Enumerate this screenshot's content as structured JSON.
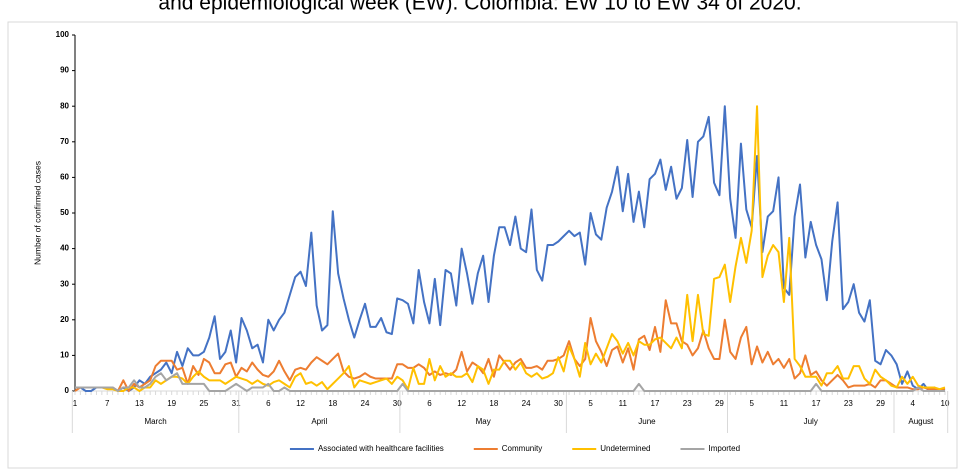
{
  "chart_data": {
    "type": "line",
    "title": "and epidemiological week (EW). Colombia: EW 10 to EW 34 of 2020.",
    "y_label": "Number of confirmed cases",
    "ylim": [
      0,
      100
    ],
    "yticks": [
      0,
      10,
      20,
      30,
      40,
      50,
      60,
      70,
      80,
      90,
      100
    ],
    "categories": [
      1,
      null,
      null,
      null,
      null,
      null,
      7,
      null,
      null,
      null,
      null,
      null,
      13,
      null,
      null,
      null,
      null,
      null,
      19,
      null,
      null,
      null,
      null,
      null,
      25,
      null,
      null,
      null,
      null,
      null,
      31,
      null,
      null,
      null,
      null,
      null,
      6,
      null,
      null,
      null,
      null,
      null,
      12,
      null,
      null,
      null,
      null,
      null,
      18,
      null,
      null,
      null,
      null,
      null,
      24,
      null,
      null,
      null,
      null,
      null,
      30,
      null,
      null,
      null,
      null,
      null,
      6,
      null,
      null,
      null,
      null,
      null,
      12,
      null,
      null,
      null,
      null,
      null,
      18,
      null,
      null,
      null,
      null,
      null,
      24,
      null,
      null,
      null,
      null,
      null,
      30,
      null,
      null,
      null,
      null,
      null,
      5,
      null,
      null,
      null,
      null,
      null,
      11,
      null,
      null,
      null,
      null,
      null,
      17,
      null,
      null,
      null,
      null,
      null,
      23,
      null,
      null,
      null,
      null,
      null,
      29,
      null,
      null,
      null,
      null,
      null,
      5,
      null,
      null,
      null,
      null,
      null,
      11,
      null,
      null,
      null,
      null,
      null,
      17,
      null,
      null,
      null,
      null,
      null,
      23,
      null,
      null,
      null,
      null,
      null,
      29,
      null,
      null,
      null,
      null,
      null,
      4,
      null,
      null,
      null,
      null,
      null,
      10
    ],
    "months": [
      "March",
      "April",
      "May",
      "June",
      "July",
      "August"
    ],
    "month_lengths": [
      31,
      30,
      31,
      30,
      31,
      10
    ],
    "series": [
      {
        "name": "Associated with healthcare facilities",
        "color": "#4472c4",
        "values": [
          1,
          1,
          0,
          0,
          1,
          1,
          1,
          1,
          0,
          1,
          0,
          1,
          3,
          2,
          4,
          5,
          6,
          8,
          5,
          11,
          7,
          12,
          10,
          10,
          11,
          15,
          21,
          9,
          11,
          17,
          8,
          20.5,
          17,
          12,
          13,
          8,
          20,
          17,
          20,
          22,
          27,
          32,
          33.5,
          29.5,
          44.5,
          24,
          17,
          18.5,
          50.5,
          33,
          26,
          20,
          15,
          20,
          24.5,
          18,
          18,
          20.5,
          16.5,
          16,
          26,
          25.5,
          24.5,
          19,
          34,
          25,
          19,
          31.5,
          18.5,
          34,
          33,
          24,
          40,
          33,
          24.5,
          33,
          38,
          25,
          38,
          46,
          46,
          41,
          49,
          40,
          39,
          51,
          34,
          31,
          41,
          41,
          42,
          43.5,
          45,
          43.5,
          44.5,
          35.5,
          50,
          44,
          42.5,
          51.5,
          56,
          63,
          50.5,
          61,
          47.5,
          56,
          46,
          59.5,
          61,
          65,
          56.5,
          63,
          54,
          57,
          70.5,
          54.5,
          70,
          71.5,
          77,
          58.5,
          55,
          80,
          54,
          43,
          69.5,
          51,
          46,
          66,
          39,
          49,
          50.5,
          60,
          29,
          27,
          49,
          58,
          37.5,
          47.5,
          41,
          37,
          25.5,
          42,
          53,
          23,
          25,
          30,
          22,
          19.5,
          25.5,
          8.5,
          7.5,
          11.5,
          10,
          7.5,
          2,
          5.5,
          1.5,
          0.5,
          2,
          0,
          1,
          0,
          0.5
        ]
      },
      {
        "name": "Community",
        "color": "#ed7d31",
        "values": [
          0,
          1,
          1,
          1,
          1,
          1,
          1,
          1,
          0,
          3,
          0,
          2,
          1,
          2,
          3,
          7,
          8.5,
          8.5,
          8.5,
          6,
          6.5,
          2,
          7,
          4.5,
          9,
          8,
          5,
          5,
          7.5,
          8,
          4,
          6.5,
          5.5,
          8,
          6,
          4.5,
          4,
          5.5,
          8.5,
          5.5,
          3,
          6,
          6.5,
          6,
          8,
          9.5,
          8.5,
          7.5,
          9,
          10.5,
          5.5,
          4,
          3.5,
          4,
          5,
          4,
          3.5,
          3.5,
          3.5,
          3.5,
          7.5,
          7.5,
          6.5,
          6.5,
          7.5,
          6.5,
          4.5,
          5.5,
          4.5,
          5,
          4.5,
          6,
          11,
          5.5,
          8,
          7,
          5,
          9,
          4,
          10,
          8,
          6,
          8,
          9,
          6.5,
          6.5,
          7,
          6,
          8.5,
          8.5,
          9,
          10,
          14,
          9,
          7,
          9,
          20.5,
          14,
          11,
          7,
          11.5,
          12.5,
          8,
          12,
          6,
          14.5,
          15.5,
          11.5,
          18,
          11,
          25.5,
          19,
          19,
          14,
          13,
          10,
          12,
          17,
          12,
          9,
          9,
          20,
          11,
          9,
          15,
          18,
          7.5,
          12.5,
          8,
          11,
          7.5,
          9,
          6.5,
          9,
          3.5,
          5,
          10,
          4.5,
          5.5,
          3,
          1.5,
          3,
          4.5,
          3,
          1,
          1.5,
          1.5,
          1.5,
          2,
          1,
          3,
          3,
          2,
          1,
          1,
          1,
          0.5,
          0.5,
          1,
          0.5,
          0.5,
          0.5,
          0.5
        ]
      },
      {
        "name": "Undetermined",
        "color": "#ffc000",
        "values": [
          1,
          1,
          1,
          1,
          1,
          1,
          0.5,
          0.5,
          0,
          0,
          1,
          1,
          0,
          1,
          1,
          3,
          2,
          3,
          4,
          4,
          3.5,
          2,
          4,
          5.5,
          4,
          3,
          3,
          3,
          2,
          3,
          4,
          3.5,
          3,
          2,
          3,
          2,
          1.5,
          2.5,
          3,
          2,
          1,
          4,
          5,
          2,
          2.5,
          1.5,
          2.5,
          0.5,
          2,
          3.5,
          5,
          7,
          1,
          3,
          2.5,
          2,
          2.5,
          3,
          3.5,
          2,
          4,
          3,
          0.5,
          6.5,
          2,
          2,
          9,
          3,
          7,
          4,
          5,
          4,
          4,
          5,
          2.5,
          7,
          6,
          2,
          6,
          6,
          8.5,
          8.5,
          6,
          8,
          5,
          4,
          5,
          3.5,
          4,
          5,
          9.5,
          5.5,
          12.5,
          9,
          4,
          13.5,
          7.5,
          10.5,
          8,
          12,
          16,
          14,
          10.5,
          13.5,
          10,
          14,
          13,
          13,
          14.5,
          15,
          13.5,
          12,
          15,
          12,
          27,
          14,
          27,
          16,
          15.5,
          31.5,
          32,
          35.5,
          25,
          35,
          43,
          36,
          45,
          80,
          32,
          38,
          41,
          39,
          25,
          43,
          9,
          7,
          4,
          4,
          4,
          1.5,
          5,
          5,
          7,
          3.5,
          3.5,
          7,
          7,
          3.5,
          2,
          6,
          4,
          3,
          1.5,
          1,
          4,
          2,
          4,
          1.5,
          1,
          1,
          1,
          0.5,
          1
        ]
      },
      {
        "name": "Imported",
        "color": "#a5a5a5",
        "values": [
          1,
          1,
          1,
          1,
          1,
          1,
          1,
          1,
          0,
          1,
          1,
          3,
          1,
          1,
          2,
          4,
          5,
          3,
          4,
          5,
          2,
          2,
          2,
          2,
          2,
          0,
          0,
          0,
          0,
          1,
          2,
          1,
          0,
          1,
          1,
          1,
          2,
          0,
          0,
          1,
          0,
          0,
          0,
          0,
          0,
          0,
          0,
          0,
          0,
          0,
          0,
          0,
          0,
          0,
          0,
          0,
          0,
          0,
          0,
          0,
          0,
          2,
          0,
          0,
          0,
          0,
          0,
          0,
          0,
          0,
          0,
          0,
          0,
          0,
          0,
          0,
          0,
          0,
          0,
          0,
          0,
          0,
          0,
          0,
          0,
          0,
          0,
          0,
          0,
          0,
          0,
          0,
          0,
          0,
          0,
          0,
          0,
          0,
          0,
          0,
          0,
          0,
          0,
          0,
          0,
          2,
          0,
          0,
          0,
          0,
          0,
          0,
          0,
          0,
          0,
          0,
          0,
          0,
          0,
          0,
          0,
          0,
          0,
          0,
          0,
          0,
          0,
          0,
          0,
          0,
          0,
          0,
          0,
          0,
          0,
          0,
          0,
          0,
          2,
          0,
          0,
          0,
          0,
          0,
          0,
          0,
          0,
          0,
          0,
          0,
          0,
          0,
          0,
          0,
          0,
          0,
          0,
          1,
          0,
          0,
          0,
          0,
          0
        ]
      }
    ]
  }
}
